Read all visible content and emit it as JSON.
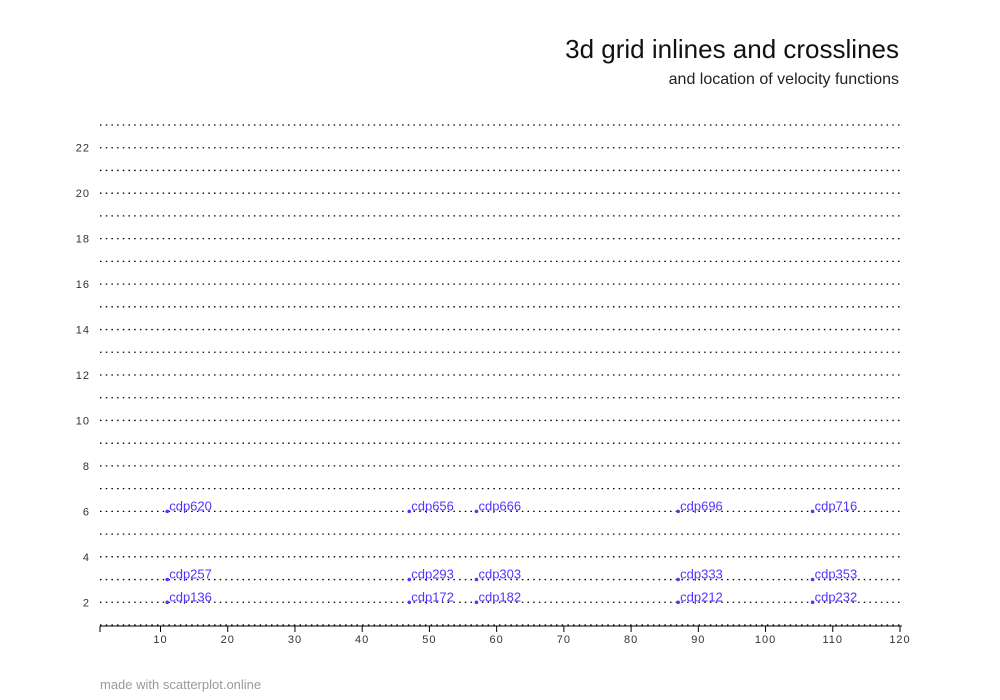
{
  "chart_data": {
    "type": "scatter",
    "title": "3d grid inlines and crosslines",
    "subtitle": "and location of velocity functions",
    "xlabel": "",
    "ylabel": "",
    "xlim": [
      1,
      120
    ],
    "ylim": [
      1,
      23
    ],
    "xticks": [
      10,
      20,
      30,
      40,
      50,
      60,
      70,
      80,
      90,
      100,
      110,
      120
    ],
    "yticks": [
      2,
      4,
      6,
      8,
      10,
      12,
      14,
      16,
      18,
      20,
      22
    ],
    "grid": {
      "inline_rows": [
        1,
        2,
        3,
        4,
        5,
        6,
        7,
        8,
        9,
        10,
        11,
        12,
        13,
        14,
        15,
        16,
        17,
        18,
        19,
        20,
        21,
        22,
        23
      ],
      "crossline_x_range": [
        1,
        120
      ]
    },
    "points": [
      {
        "label": "cdp136",
        "x": 11,
        "y": 2
      },
      {
        "label": "cdp172",
        "x": 47,
        "y": 2
      },
      {
        "label": "cdp182",
        "x": 57,
        "y": 2
      },
      {
        "label": "cdp212",
        "x": 87,
        "y": 2
      },
      {
        "label": "cdp232",
        "x": 107,
        "y": 2
      },
      {
        "label": "cdp257",
        "x": 11,
        "y": 3
      },
      {
        "label": "cdp293",
        "x": 47,
        "y": 3
      },
      {
        "label": "cdp303",
        "x": 57,
        "y": 3
      },
      {
        "label": "cdp333",
        "x": 87,
        "y": 3
      },
      {
        "label": "cdp353",
        "x": 107,
        "y": 3
      },
      {
        "label": "cdp620",
        "x": 11,
        "y": 6
      },
      {
        "label": "cdp656",
        "x": 47,
        "y": 6
      },
      {
        "label": "cdp666",
        "x": 57,
        "y": 6
      },
      {
        "label": "cdp696",
        "x": 87,
        "y": 6
      },
      {
        "label": "cdp716",
        "x": 107,
        "y": 6
      }
    ],
    "colors": {
      "grid_dots": "#000000",
      "label_text": "#5533ff",
      "point": "#5533ff"
    }
  },
  "footer": "made with scatterplot.online"
}
